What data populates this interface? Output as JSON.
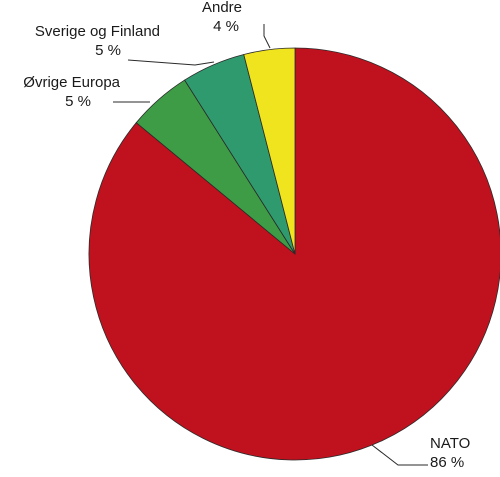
{
  "chart_data": {
    "type": "pie",
    "title": "",
    "start": "12 o'clock",
    "direction": "clockwise",
    "slices": [
      {
        "label": "NATO",
        "value": 86,
        "value_label": "86 %",
        "color": "#c0111e"
      },
      {
        "label": "Øvrige Europa",
        "value": 5,
        "value_label": "5 %",
        "color": "#3d9c45"
      },
      {
        "label": "Sverige og Finland",
        "value": 5,
        "value_label": "5 %",
        "color": "#2f9a6e"
      },
      {
        "label": "Andre",
        "value": 4,
        "value_label": "4 %",
        "color": "#f0e41e"
      }
    ],
    "legend": "none",
    "labels": "outside with leader lines"
  }
}
